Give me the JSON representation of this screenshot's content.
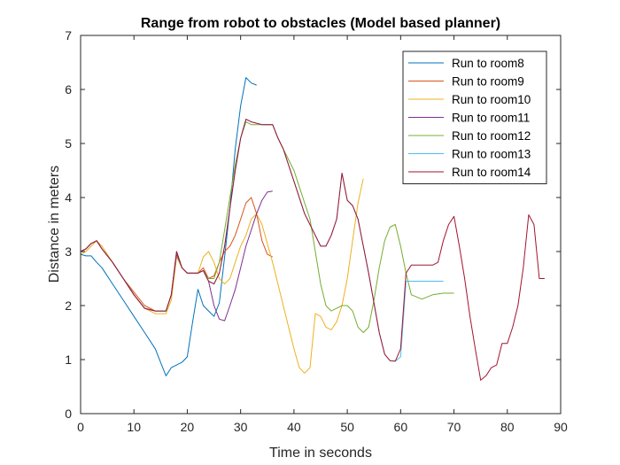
{
  "chart_data": {
    "type": "line",
    "title": "Range from robot to obstacles (Model based planner)",
    "xlabel": "Time in seconds",
    "ylabel": "Distance in meters",
    "xlim": [
      0,
      90
    ],
    "ylim": [
      0,
      7
    ],
    "xticks": [
      "0",
      "10",
      "20",
      "30",
      "40",
      "50",
      "60",
      "70",
      "80",
      "90"
    ],
    "yticks": [
      "0",
      "1",
      "2",
      "3",
      "4",
      "5",
      "6",
      "7"
    ],
    "grid": false,
    "legend_position": "top-right",
    "series": [
      {
        "name": "Run to room8",
        "color": "#0072BD",
        "x": [
          0,
          1,
          2,
          3,
          4,
          6,
          8,
          10,
          12,
          14,
          15,
          16,
          17,
          18,
          19,
          20,
          21,
          22,
          23,
          24,
          25,
          26,
          27,
          28,
          29,
          30,
          31,
          32,
          33
        ],
        "y": [
          2.95,
          2.92,
          2.92,
          2.8,
          2.7,
          2.4,
          2.1,
          1.8,
          1.5,
          1.2,
          0.95,
          0.7,
          0.85,
          0.9,
          0.95,
          1.05,
          1.7,
          2.3,
          2.0,
          1.9,
          1.8,
          2.05,
          2.9,
          3.8,
          4.9,
          5.7,
          6.22,
          6.12,
          6.08
        ]
      },
      {
        "name": "Run to room9",
        "color": "#D95319",
        "x": [
          0,
          1,
          2,
          3,
          4,
          6,
          8,
          10,
          12,
          14,
          16,
          17,
          18,
          19,
          20,
          22,
          23,
          24,
          25,
          26,
          27,
          28,
          29,
          30,
          31,
          32,
          33,
          34,
          35,
          36
        ],
        "y": [
          3.0,
          3.05,
          3.15,
          3.2,
          3.05,
          2.8,
          2.5,
          2.25,
          2.0,
          1.9,
          1.9,
          2.2,
          3.0,
          2.7,
          2.6,
          2.6,
          2.7,
          2.5,
          2.55,
          2.8,
          3.0,
          3.1,
          3.3,
          3.6,
          3.9,
          4.0,
          3.7,
          3.2,
          2.95,
          2.9
        ]
      },
      {
        "name": "Run to room10",
        "color": "#EDB120",
        "x": [
          0,
          1,
          2,
          3,
          4,
          6,
          8,
          10,
          12,
          14,
          16,
          17,
          18,
          19,
          20,
          22,
          23,
          24,
          25,
          26,
          27,
          28,
          29,
          30,
          31,
          32,
          33,
          34,
          36,
          38,
          40,
          41,
          42,
          43,
          44,
          45,
          46,
          47,
          48,
          49,
          50,
          51,
          52,
          53
        ],
        "y": [
          2.95,
          3.0,
          3.1,
          3.2,
          3.1,
          2.8,
          2.5,
          2.2,
          1.95,
          1.85,
          1.85,
          2.1,
          2.9,
          2.7,
          2.6,
          2.6,
          2.9,
          3.0,
          2.8,
          2.5,
          2.4,
          2.5,
          2.8,
          3.1,
          3.3,
          3.6,
          3.7,
          3.5,
          2.8,
          2.0,
          1.2,
          0.85,
          0.75,
          0.85,
          1.85,
          1.8,
          1.6,
          1.55,
          1.7,
          2.0,
          2.5,
          3.2,
          3.9,
          4.35
        ]
      },
      {
        "name": "Run to room11",
        "color": "#7E2F8E",
        "x": [
          0,
          1,
          2,
          3,
          4,
          6,
          8,
          10,
          12,
          14,
          16,
          17,
          18,
          19,
          20,
          22,
          23,
          24,
          25,
          26,
          27,
          28,
          29,
          30,
          31,
          32,
          33,
          34,
          35,
          36
        ],
        "y": [
          3.0,
          3.05,
          3.15,
          3.2,
          3.05,
          2.8,
          2.5,
          2.2,
          1.95,
          1.9,
          1.9,
          2.2,
          2.95,
          2.7,
          2.6,
          2.6,
          2.65,
          2.45,
          2.0,
          1.75,
          1.72,
          2.0,
          2.3,
          2.7,
          3.1,
          3.4,
          3.7,
          3.95,
          4.1,
          4.12
        ]
      },
      {
        "name": "Run to room12",
        "color": "#77AC30",
        "x": [
          0,
          1,
          2,
          3,
          4,
          6,
          8,
          10,
          12,
          14,
          16,
          17,
          18,
          19,
          20,
          22,
          23,
          24,
          25,
          26,
          27,
          28,
          29,
          30,
          31,
          32,
          34,
          36,
          37,
          38,
          40,
          41,
          42,
          43,
          44,
          45,
          46,
          47,
          48,
          49,
          50,
          51,
          52,
          53,
          54,
          55,
          56,
          57,
          58,
          59,
          60,
          61,
          62,
          64,
          66,
          68,
          70
        ],
        "y": [
          3.0,
          3.05,
          3.15,
          3.2,
          3.05,
          2.8,
          2.5,
          2.2,
          1.95,
          1.9,
          1.9,
          2.2,
          3.0,
          2.7,
          2.6,
          2.6,
          2.65,
          2.5,
          2.5,
          2.8,
          3.4,
          4.0,
          4.6,
          5.1,
          5.4,
          5.35,
          5.35,
          5.35,
          5.1,
          4.9,
          4.5,
          4.2,
          3.9,
          3.6,
          3.0,
          2.4,
          2.0,
          1.9,
          1.95,
          2.0,
          2.0,
          1.9,
          1.6,
          1.5,
          1.6,
          2.1,
          2.7,
          3.2,
          3.45,
          3.5,
          3.1,
          2.6,
          2.2,
          2.12,
          2.2,
          2.23,
          2.23
        ]
      },
      {
        "name": "Run to room13",
        "color": "#4DBEEE",
        "x": [
          0,
          1,
          2,
          3,
          4,
          6,
          8,
          10,
          12,
          14,
          16,
          17,
          18,
          19,
          20,
          22,
          23,
          24,
          25,
          26,
          27,
          28,
          29,
          30,
          31,
          32,
          34,
          36,
          37,
          38,
          40,
          42,
          44,
          45,
          46,
          47,
          48,
          49,
          50,
          51,
          52,
          54,
          56,
          57,
          58,
          59,
          60,
          61,
          62,
          64,
          66,
          68
        ],
        "y": [
          3.0,
          3.05,
          3.15,
          3.2,
          3.05,
          2.8,
          2.5,
          2.2,
          1.95,
          1.9,
          1.9,
          2.2,
          3.0,
          2.7,
          2.6,
          2.6,
          2.65,
          2.45,
          2.4,
          2.6,
          3.1,
          3.8,
          4.5,
          5.1,
          5.45,
          5.4,
          5.35,
          5.35,
          5.1,
          4.9,
          4.3,
          3.7,
          3.3,
          3.1,
          3.1,
          3.3,
          3.6,
          4.45,
          3.95,
          3.85,
          3.6,
          2.6,
          1.5,
          1.1,
          0.98,
          0.97,
          1.05,
          2.45,
          2.45,
          2.45,
          2.45,
          2.45
        ]
      },
      {
        "name": "Run to room14",
        "color": "#A2142F",
        "x": [
          0,
          1,
          2,
          3,
          4,
          6,
          8,
          10,
          12,
          14,
          16,
          17,
          18,
          19,
          20,
          22,
          23,
          24,
          25,
          26,
          27,
          28,
          29,
          30,
          31,
          32,
          34,
          36,
          37,
          38,
          40,
          42,
          44,
          45,
          46,
          47,
          48,
          49,
          50,
          51,
          52,
          54,
          56,
          57,
          58,
          59,
          60,
          61,
          62,
          64,
          66,
          67,
          68,
          69,
          70,
          71,
          72,
          73,
          74,
          75,
          76,
          77,
          78,
          79,
          80,
          81,
          82,
          83,
          84,
          85,
          86,
          87
        ],
        "y": [
          3.0,
          3.05,
          3.15,
          3.2,
          3.05,
          2.8,
          2.5,
          2.2,
          1.95,
          1.9,
          1.9,
          2.2,
          3.0,
          2.7,
          2.6,
          2.6,
          2.65,
          2.45,
          2.4,
          2.6,
          3.1,
          3.8,
          4.5,
          5.1,
          5.45,
          5.4,
          5.35,
          5.35,
          5.1,
          4.9,
          4.3,
          3.7,
          3.3,
          3.1,
          3.1,
          3.3,
          3.6,
          4.45,
          3.95,
          3.85,
          3.6,
          2.6,
          1.5,
          1.1,
          0.98,
          0.97,
          1.2,
          2.6,
          2.75,
          2.75,
          2.75,
          2.8,
          3.2,
          3.5,
          3.65,
          3.1,
          2.5,
          1.8,
          1.2,
          0.62,
          0.7,
          0.85,
          0.9,
          1.3,
          1.3,
          1.6,
          2.0,
          2.7,
          3.68,
          3.5,
          2.5,
          2.5
        ]
      }
    ]
  }
}
